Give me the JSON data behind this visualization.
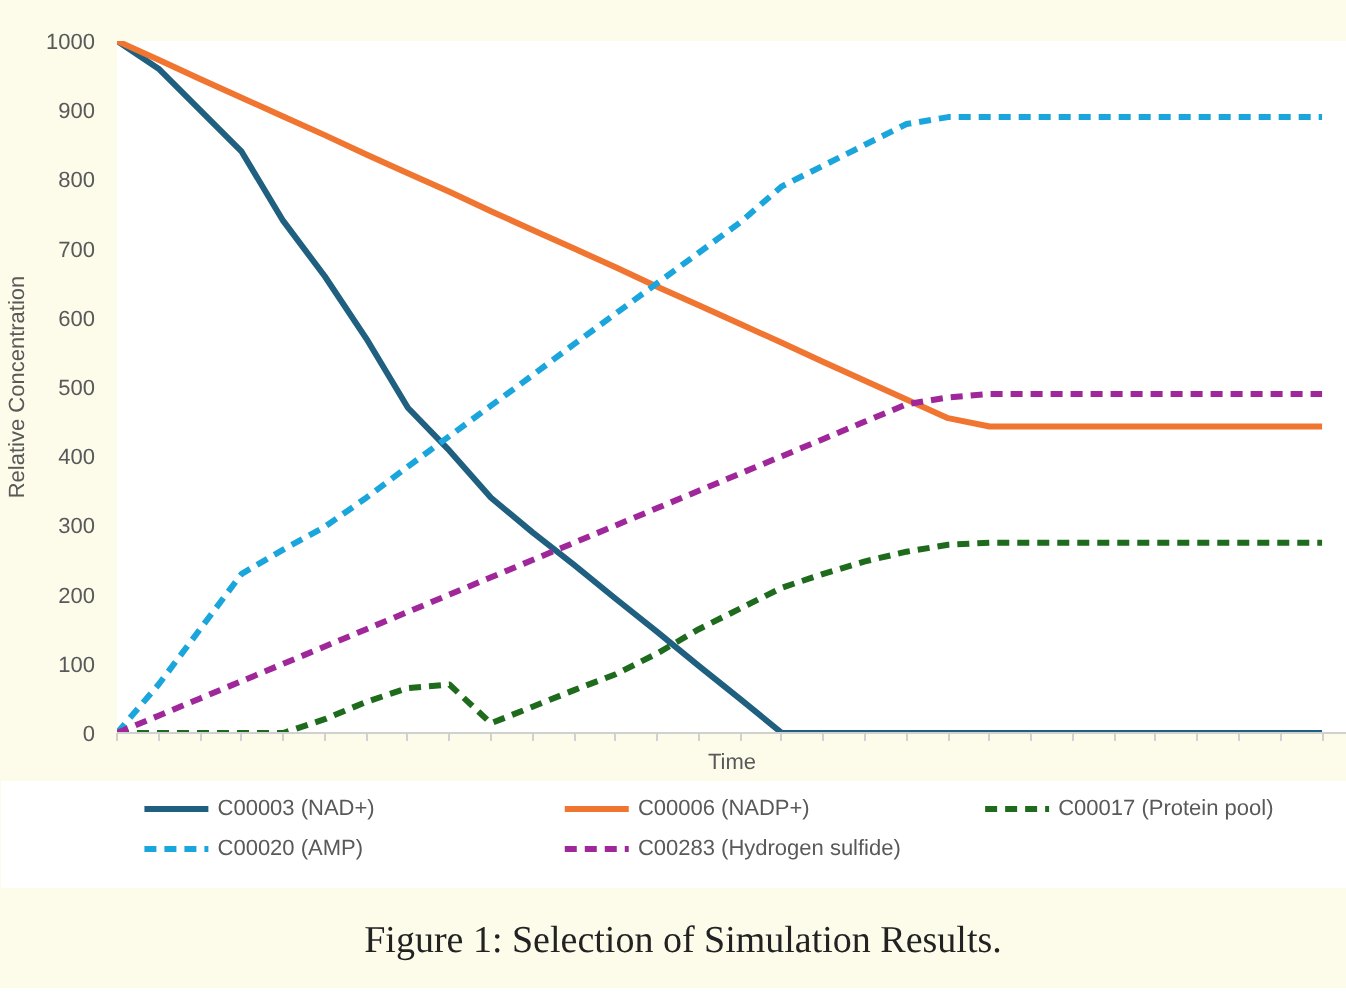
{
  "chart_data": {
    "type": "line",
    "title": "Figure 1: Selection of Simulation Results.",
    "xlabel": "Time",
    "ylabel": "Relative Concentration",
    "categories": [
      null,
      null,
      null,
      null,
      null,
      null,
      null,
      null,
      null,
      null,
      null,
      null,
      null,
      null,
      null,
      null,
      null,
      null,
      null,
      null,
      null,
      null,
      null,
      null,
      null,
      null,
      null,
      null,
      null,
      null
    ],
    "ylim": [
      0,
      1000
    ],
    "yticks": [
      0,
      100,
      200,
      300,
      400,
      500,
      600,
      700,
      800,
      900,
      1000
    ],
    "grid": false,
    "legend": "bottom",
    "tick_labels": "y",
    "series": [
      {
        "name": "C00003 (NAD+)",
        "color": "#1f5f7f",
        "line_style": "solid",
        "values": [
          1000,
          960,
          900,
          840,
          740,
          660,
          570,
          470,
          408,
          340,
          290,
          243,
          194,
          146,
          97,
          49,
          0,
          0,
          0,
          0,
          0,
          0,
          0,
          0,
          0,
          0,
          0,
          0,
          0,
          0
        ]
      },
      {
        "name": "C00006 (NADP+)",
        "color": "#f07530",
        "line_style": "solid",
        "values": [
          1000,
          973,
          945,
          918,
          891,
          864,
          836,
          809,
          782,
          754,
          727,
          700,
          673,
          645,
          618,
          591,
          564,
          536,
          509,
          482,
          455,
          443,
          443,
          443,
          443,
          443,
          443,
          443,
          443,
          443
        ]
      },
      {
        "name": "C00017 (Protein pool)",
        "color": "#1e6b1e",
        "line_style": "dashed",
        "values": [
          0,
          0,
          0,
          0,
          0,
          20,
          45,
          65,
          70,
          14,
          38,
          62,
          85,
          115,
          150,
          180,
          210,
          230,
          248,
          262,
          272,
          275,
          275,
          275,
          275,
          275,
          275,
          275,
          275,
          275
        ]
      },
      {
        "name": "C00020 (AMP)",
        "color": "#1aa6dc",
        "line_style": "dashed",
        "values": [
          0,
          70,
          150,
          230,
          265,
          298,
          340,
          385,
          429,
          473,
          517,
          562,
          606,
          650,
          694,
          738,
          790,
          820,
          850,
          880,
          890,
          890,
          890,
          890,
          890,
          890,
          890,
          890,
          890,
          890
        ]
      },
      {
        "name": "C00283 (Hydrogen sulfide)",
        "color": "#a0279a",
        "line_style": "dashed",
        "values": [
          0,
          25,
          50,
          75,
          100,
          125,
          150,
          175,
          200,
          225,
          250,
          275,
          300,
          325,
          350,
          375,
          400,
          425,
          450,
          475,
          485,
          490,
          490,
          490,
          490,
          490,
          490,
          490,
          490,
          490
        ]
      }
    ]
  }
}
